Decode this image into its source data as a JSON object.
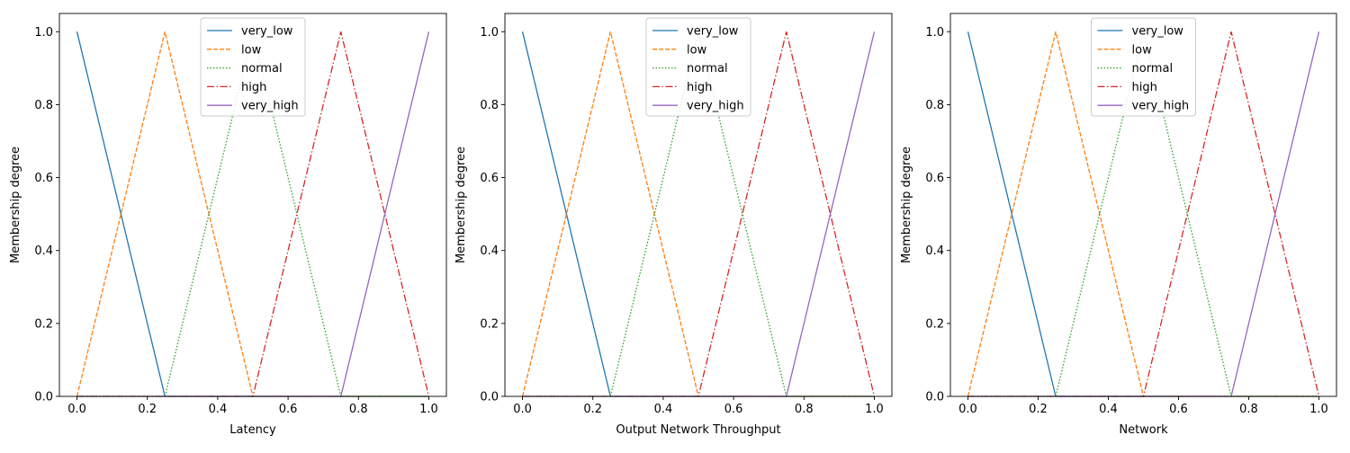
{
  "chart_data": [
    {
      "type": "line",
      "xlabel": "Latency",
      "ylabel": "Membership degree",
      "xlim": [
        -0.05,
        1.05
      ],
      "ylim": [
        0,
        1.05
      ],
      "xticks": [
        "0.0",
        "0.2",
        "0.4",
        "0.6",
        "0.8",
        "1.0"
      ],
      "yticks": [
        "0.0",
        "0.2",
        "0.4",
        "0.6",
        "0.8",
        "1.0"
      ],
      "grid": false,
      "legend": "upper center",
      "series": [
        {
          "name": "very_low",
          "x": [
            0,
            0.25,
            1
          ],
          "y": [
            1,
            0,
            0
          ],
          "color": "#1f77b4",
          "style": "solid"
        },
        {
          "name": "low",
          "x": [
            0,
            0.25,
            0.5,
            1
          ],
          "y": [
            0,
            1,
            0,
            0
          ],
          "color": "#ff7f0e",
          "style": "dashed"
        },
        {
          "name": "normal",
          "x": [
            0,
            0.25,
            0.5,
            0.75,
            1
          ],
          "y": [
            0,
            0,
            1,
            0,
            0
          ],
          "color": "#2ca02c",
          "style": "dotted"
        },
        {
          "name": "high",
          "x": [
            0,
            0.5,
            0.75,
            1
          ],
          "y": [
            0,
            0,
            1,
            0
          ],
          "color": "#d62728",
          "style": "dashdot"
        },
        {
          "name": "very_high",
          "x": [
            0,
            0.75,
            1
          ],
          "y": [
            0,
            0,
            1
          ],
          "color": "#9467bd",
          "style": "solid"
        }
      ]
    },
    {
      "type": "line",
      "xlabel": "Output Network Throughput",
      "ylabel": "Membership degree",
      "xlim": [
        -0.05,
        1.05
      ],
      "ylim": [
        0,
        1.05
      ],
      "xticks": [
        "0.0",
        "0.2",
        "0.4",
        "0.6",
        "0.8",
        "1.0"
      ],
      "yticks": [
        "0.0",
        "0.2",
        "0.4",
        "0.6",
        "0.8",
        "1.0"
      ],
      "grid": false,
      "legend": "upper center",
      "series": [
        {
          "name": "very_low",
          "x": [
            0,
            0.25,
            1
          ],
          "y": [
            1,
            0,
            0
          ],
          "color": "#1f77b4",
          "style": "solid"
        },
        {
          "name": "low",
          "x": [
            0,
            0.25,
            0.5,
            1
          ],
          "y": [
            0,
            1,
            0,
            0
          ],
          "color": "#ff7f0e",
          "style": "dashed"
        },
        {
          "name": "normal",
          "x": [
            0,
            0.25,
            0.5,
            0.75,
            1
          ],
          "y": [
            0,
            0,
            1,
            0,
            0
          ],
          "color": "#2ca02c",
          "style": "dotted"
        },
        {
          "name": "high",
          "x": [
            0,
            0.5,
            0.75,
            1
          ],
          "y": [
            0,
            0,
            1,
            0
          ],
          "color": "#d62728",
          "style": "dashdot"
        },
        {
          "name": "very_high",
          "x": [
            0,
            0.75,
            1
          ],
          "y": [
            0,
            0,
            1
          ],
          "color": "#9467bd",
          "style": "solid"
        }
      ]
    },
    {
      "type": "line",
      "xlabel": "Network",
      "ylabel": "Membership degree",
      "xlim": [
        -0.05,
        1.05
      ],
      "ylim": [
        0,
        1.05
      ],
      "xticks": [
        "0.0",
        "0.2",
        "0.4",
        "0.6",
        "0.8",
        "1.0"
      ],
      "yticks": [
        "0.0",
        "0.2",
        "0.4",
        "0.6",
        "0.8",
        "1.0"
      ],
      "grid": false,
      "legend": "upper center",
      "series": [
        {
          "name": "very_low",
          "x": [
            0,
            0.25,
            1
          ],
          "y": [
            1,
            0,
            0
          ],
          "color": "#1f77b4",
          "style": "solid"
        },
        {
          "name": "low",
          "x": [
            0,
            0.25,
            0.5,
            1
          ],
          "y": [
            0,
            1,
            0,
            0
          ],
          "color": "#ff7f0e",
          "style": "dashed"
        },
        {
          "name": "normal",
          "x": [
            0,
            0.25,
            0.5,
            0.75,
            1
          ],
          "y": [
            0,
            0,
            1,
            0,
            0
          ],
          "color": "#2ca02c",
          "style": "dotted"
        },
        {
          "name": "high",
          "x": [
            0,
            0.5,
            0.75,
            1
          ],
          "y": [
            0,
            0,
            1,
            0
          ],
          "color": "#d62728",
          "style": "dashdot"
        },
        {
          "name": "very_high",
          "x": [
            0,
            0.75,
            1
          ],
          "y": [
            0,
            0,
            1
          ],
          "color": "#9467bd",
          "style": "solid"
        }
      ]
    }
  ]
}
